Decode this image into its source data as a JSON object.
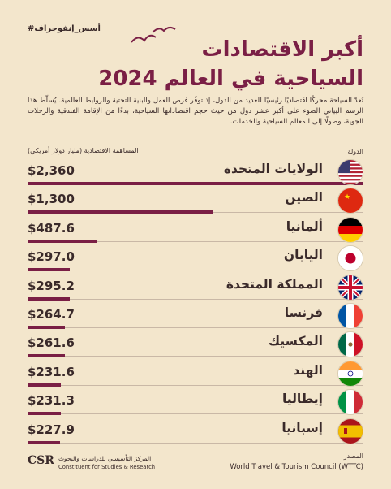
{
  "hashtag": "#أسس_إنفوجراف",
  "title_line1": "أكبر الاقتصادات",
  "title_line2": "السياحية في العالم 2024",
  "intro": "تُعدّ السياحة محركًا اقتصاديًا رئيسيًا للعديد من الدول، إذ توفّر فرص العمل والبنية التحتية والروابط العالمية. يُسلّط هذا الرسم البياني الضوء على أكبر عشر دول من حيث حجم اقتصاداتها السياحية، بدءًا من الإقامة الفندقية والرحلات الجوية، وصولًا إلى المعالم السياحية والخدمات.",
  "column_country": "الدولة",
  "column_value": "المساهمة الاقتصادية (مليار دولار أمريكي)",
  "source_label": "المصدر",
  "source_text": "World Travel & Tourism Council (WTTC)",
  "logo": {
    "mark": "CSR",
    "arabic": "المركز التأسيسي للدراسات والبحوث",
    "english": "Constituent for Studies & Research"
  },
  "chart_data": {
    "type": "bar",
    "title": "أكبر الاقتصادات السياحية في العالم 2024",
    "xlabel": "الدولة",
    "ylabel": "المساهمة الاقتصادية (مليار دولار أمريكي)",
    "ylim": [
      0,
      2360
    ],
    "categories": [
      "الولايات المتحدة",
      "الصين",
      "ألمانيا",
      "اليابان",
      "المملكة المتحدة",
      "فرنسا",
      "المكسيك",
      "الهند",
      "إيطاليا",
      "إسبانيا"
    ],
    "values": [
      2360,
      1300,
      487.6,
      297.0,
      295.2,
      264.7,
      261.6,
      231.6,
      231.3,
      227.9
    ],
    "value_labels": [
      "$2,360",
      "$1,300",
      "$487.6",
      "$297.0",
      "$295.2",
      "$264.7",
      "$261.6",
      "$231.6",
      "$231.3",
      "$227.9"
    ],
    "flags": [
      "us",
      "cn",
      "de",
      "jp",
      "gb",
      "fr",
      "mx",
      "in",
      "it",
      "es"
    ],
    "bar_color": "#7a1f45"
  }
}
